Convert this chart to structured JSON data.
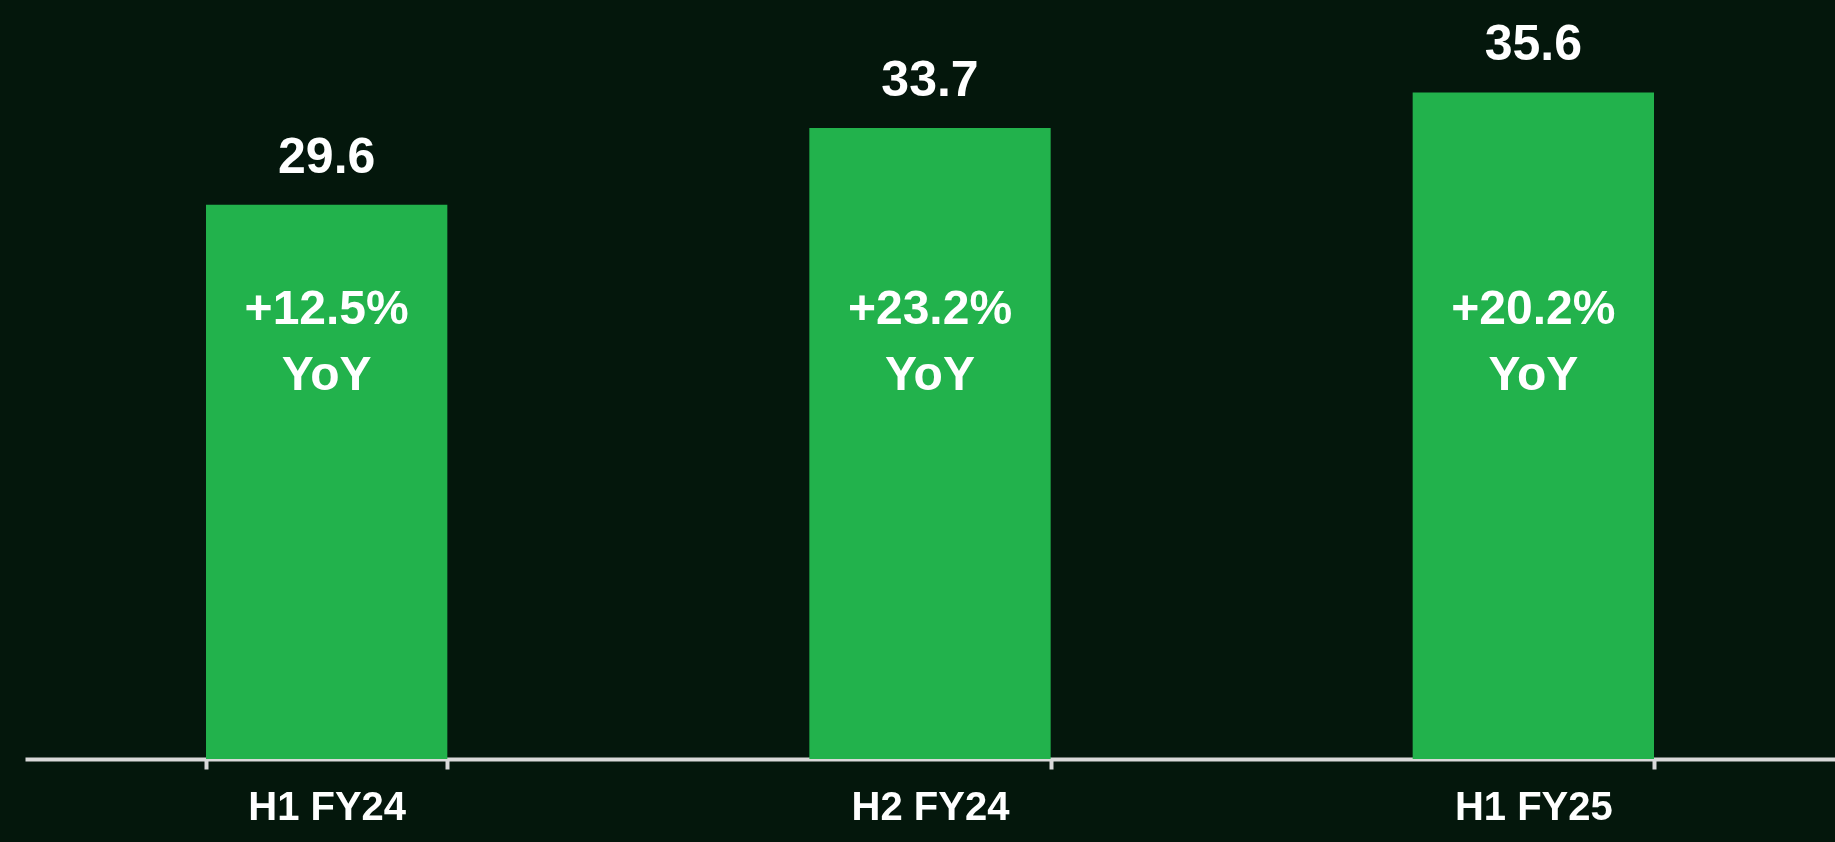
{
  "chart_data": {
    "type": "bar",
    "categories": [
      "H1 FY24",
      "H2 FY24",
      "H1 FY25"
    ],
    "values": [
      29.6,
      33.7,
      35.6
    ],
    "color": "#22b24c",
    "tick_labels": "x",
    "grid": false,
    "data_labels": true,
    "annotations": [
      "+12.5%\nYoY",
      "+23.2%\nYoY",
      "+20.2%\nYoY"
    ]
  }
}
